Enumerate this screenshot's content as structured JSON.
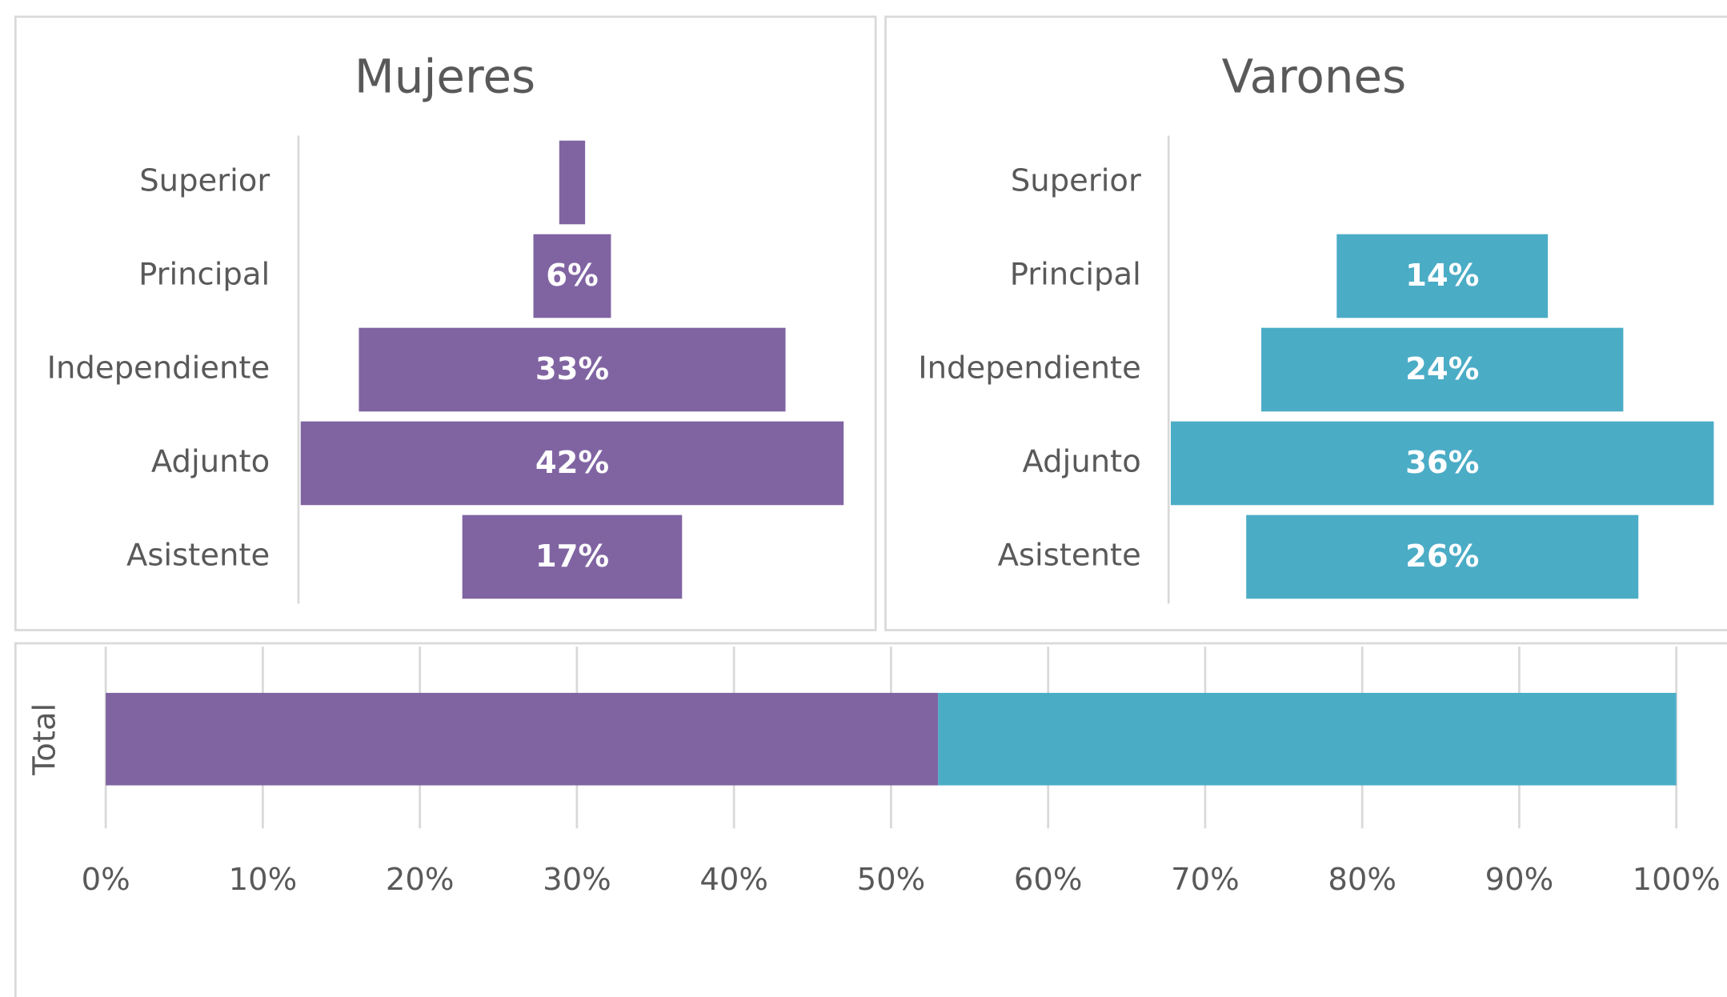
{
  "chart_data": [
    {
      "type": "funnel",
      "title": "Mujeres",
      "categories": [
        "Superior",
        "Principal",
        "Independiente",
        "Adjunto",
        "Asistente"
      ],
      "values": [
        2,
        6,
        33,
        42,
        17
      ],
      "value_labels": [
        null,
        "6%",
        "33%",
        "42%",
        "17%"
      ],
      "color": "#8064a2"
    },
    {
      "type": "funnel",
      "title": "Varones",
      "categories": [
        "Superior",
        "Principal",
        "Independiente",
        "Adjunto",
        "Asistente"
      ],
      "values": [
        0,
        14,
        24,
        36,
        26
      ],
      "value_labels": [
        null,
        "14%",
        "24%",
        "36%",
        "26%"
      ],
      "color": "#4bacc6"
    },
    {
      "type": "stacked_bar",
      "categories": [
        "Total"
      ],
      "series": [
        {
          "color": "#8064a2",
          "values": [
            53
          ]
        },
        {
          "color": "#4bacc6",
          "values": [
            47
          ]
        }
      ],
      "xlim": [
        0,
        100
      ],
      "xticks": [
        {
          "value": 0,
          "label": "0%"
        },
        {
          "value": 10,
          "label": "10%"
        },
        {
          "value": 20,
          "label": "20%"
        },
        {
          "value": 30,
          "label": "30%"
        },
        {
          "value": 40,
          "label": "40%"
        },
        {
          "value": 50,
          "label": "50%"
        },
        {
          "value": 60,
          "label": "60%"
        },
        {
          "value": 70,
          "label": "70%"
        },
        {
          "value": 80,
          "label": "80%"
        },
        {
          "value": 90,
          "label": "90%"
        },
        {
          "value": 100,
          "label": "100%"
        }
      ],
      "grid": true
    }
  ]
}
